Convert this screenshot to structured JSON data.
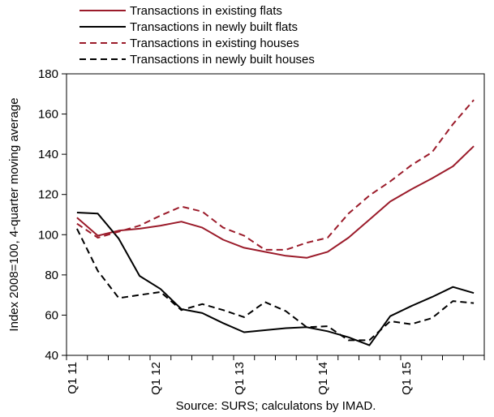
{
  "chart_data": {
    "type": "line",
    "ylabel": "Index 2008=100, 4-quarter moving average",
    "ylim": [
      40,
      180
    ],
    "yticks": [
      "40",
      "60",
      "80",
      "100",
      "120",
      "140",
      "160",
      "180"
    ],
    "x": [
      "Q1 11",
      "Q2 11",
      "Q3 11",
      "Q4 11",
      "Q1 12",
      "Q2 12",
      "Q3 12",
      "Q4 12",
      "Q1 13",
      "Q2 13",
      "Q3 13",
      "Q4 13",
      "Q1 14",
      "Q2 14",
      "Q3 14",
      "Q4 14",
      "Q1 15",
      "Q2 15",
      "Q3 15",
      "Q4 15"
    ],
    "xtick_labels": [
      {
        "index": 0,
        "label": "Q1 11"
      },
      {
        "index": 4,
        "label": "Q1 12"
      },
      {
        "index": 8,
        "label": "Q1 13"
      },
      {
        "index": 12,
        "label": "Q1 14"
      },
      {
        "index": 16,
        "label": "Q1 15"
      }
    ],
    "grid": false,
    "legend": "top",
    "series": [
      {
        "name": "Transactions in existing flats",
        "color": "#9b1b2a",
        "dash": "solid",
        "values": [
          108.5,
          99.5,
          102,
          103,
          104.5,
          106.5,
          103.5,
          97.5,
          93.5,
          91.5,
          89.5,
          88.5,
          91.5,
          98.5,
          107.5,
          116.5,
          122.5,
          128,
          134,
          144
        ]
      },
      {
        "name": "Transactions in newly built flats",
        "color": "#000000",
        "dash": "solid",
        "values": [
          111,
          110.5,
          98,
          79.5,
          73,
          63,
          61,
          56,
          51.5,
          52.5,
          53.5,
          54,
          52,
          49,
          45,
          59.5,
          64.5,
          69,
          74,
          71
        ]
      },
      {
        "name": "Transactions in existing houses",
        "color": "#9b1b2a",
        "dash": "dashed",
        "values": [
          105.5,
          98.5,
          101.5,
          104.5,
          109.5,
          114,
          111.5,
          103.5,
          99.5,
          92.5,
          92.5,
          96,
          98.5,
          110.5,
          119.5,
          126.5,
          134.5,
          141,
          155,
          167
        ]
      },
      {
        "name": "Transactions in newly built houses",
        "color": "#000000",
        "dash": "dashed",
        "values": [
          103,
          82,
          68.5,
          70,
          71.5,
          62.5,
          65.5,
          62.5,
          59,
          66.5,
          62,
          54,
          54.5,
          47.5,
          47.5,
          57,
          55.5,
          58.5,
          67,
          66
        ]
      }
    ],
    "source": "Source: SURS; calculatons by IMAD."
  }
}
